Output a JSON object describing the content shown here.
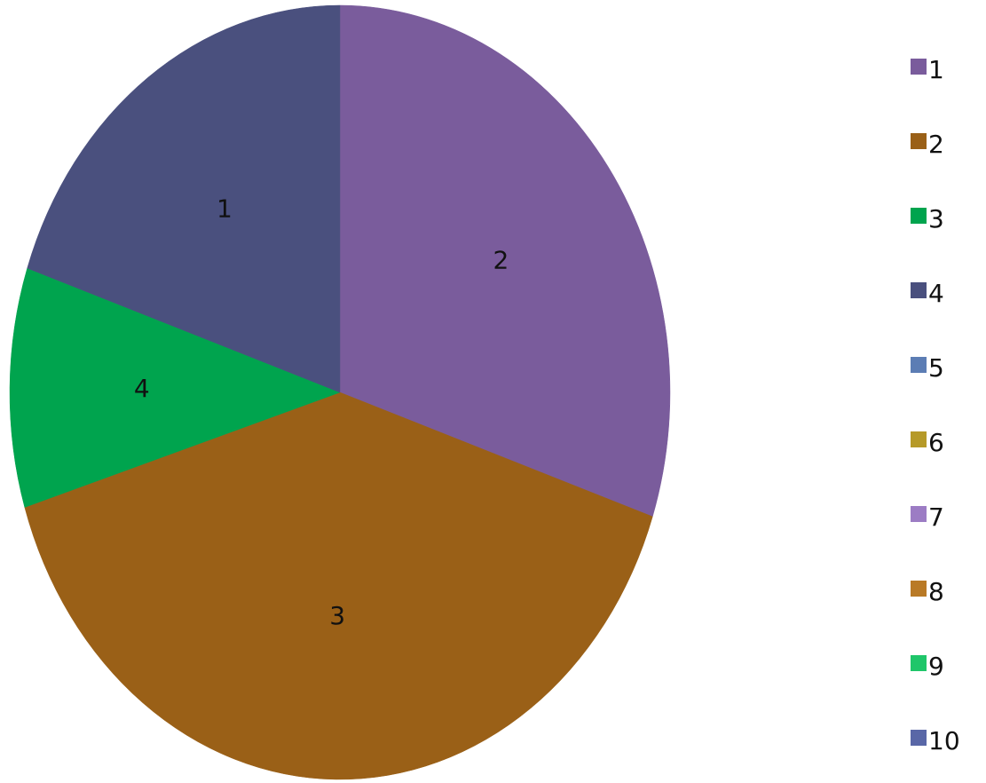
{
  "chart_data": {
    "type": "pie",
    "start_angle_deg": 0,
    "direction": "clockwise",
    "slices": [
      {
        "label": "1",
        "value": 30.2,
        "color": "#7A5C9C"
      },
      {
        "label": "2",
        "value": 40.0,
        "color": "#9A6017"
      },
      {
        "label": "3",
        "value": 10.0,
        "color": "#00A44E"
      },
      {
        "label": "4",
        "value": 19.8,
        "color": "#4A507E"
      }
    ],
    "data_labels": [
      "2",
      "3",
      "4",
      "1"
    ],
    "legend": {
      "placement": "right",
      "items": [
        {
          "label": "1",
          "color": "#7A5C9C"
        },
        {
          "label": "2",
          "color": "#9A6017"
        },
        {
          "label": "3",
          "color": "#00A44E"
        },
        {
          "label": "4",
          "color": "#4A507E"
        },
        {
          "label": "5",
          "color": "#5C7DB4"
        },
        {
          "label": "6",
          "color": "#B69A28"
        },
        {
          "label": "7",
          "color": "#9C7CC4"
        },
        {
          "label": "8",
          "color": "#B97A26"
        },
        {
          "label": "9",
          "color": "#1FC66A"
        },
        {
          "label": "10",
          "color": "#5967A7"
        }
      ]
    }
  }
}
